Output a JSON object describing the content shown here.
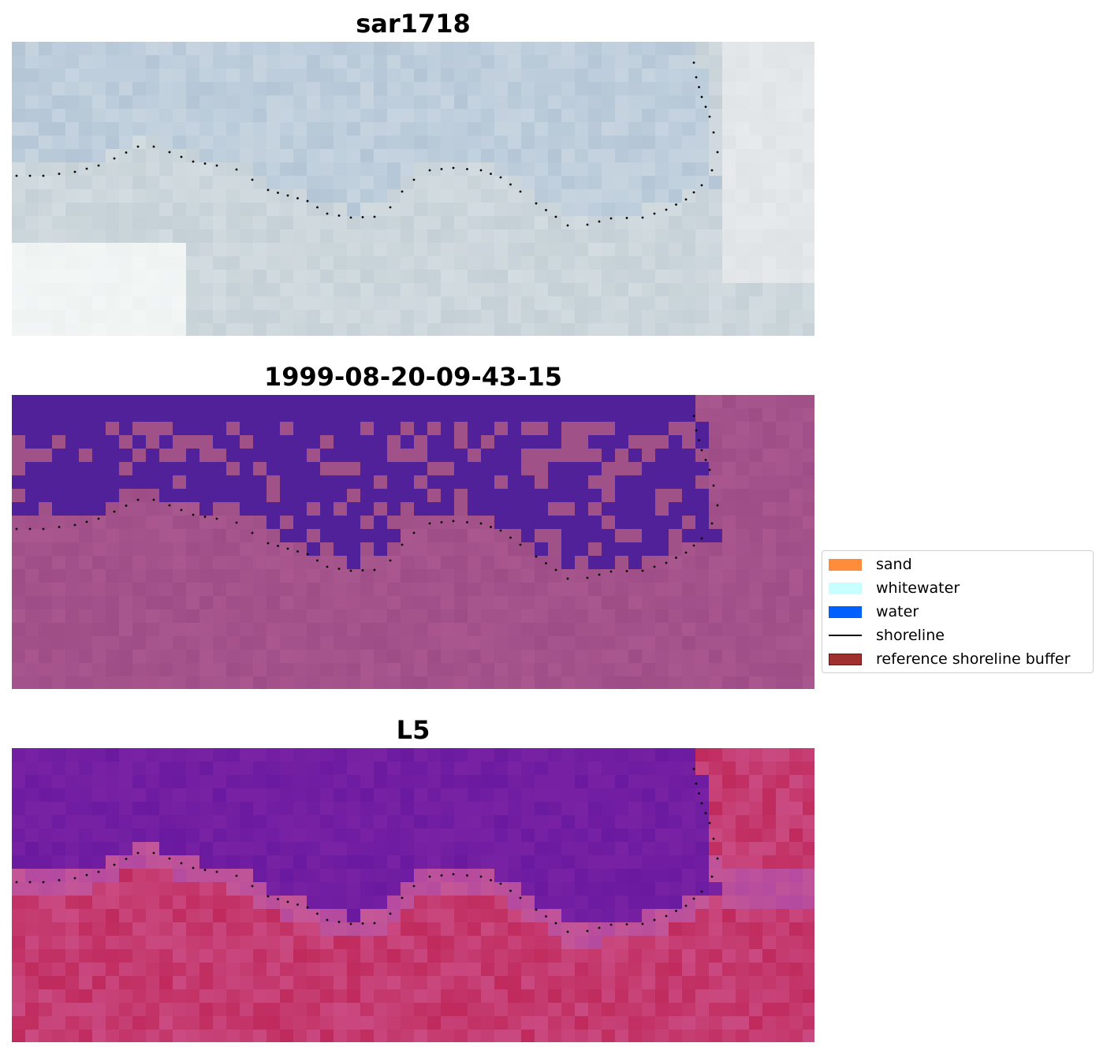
{
  "panels": [
    {
      "title": "sar1718",
      "kind": "rgb"
    },
    {
      "title": "1999-08-20-09-43-15",
      "kind": "classified"
    },
    {
      "title": "L5",
      "kind": "index"
    }
  ],
  "legend": {
    "items": [
      {
        "label": "sand",
        "type": "patch",
        "color": "#ff8c3a",
        "edge": "#ff8c3a"
      },
      {
        "label": "whitewater",
        "type": "patch",
        "color": "#c8ffff",
        "edge": "#c8ffff"
      },
      {
        "label": "water",
        "type": "patch",
        "color": "#0060ff",
        "edge": "#0060ff"
      },
      {
        "label": "shoreline",
        "type": "line",
        "color": "#000000"
      },
      {
        "label": "reference shoreline buffer",
        "type": "patch",
        "color": "#a03030",
        "edge": "#7a1010"
      }
    ]
  },
  "colors": {
    "rgb_sky": "#b4c6d6",
    "rgb_land": "#c4d0d6",
    "class_water": "#51219a",
    "class_land": "#9e4d86",
    "index_water": "#6a1aa0",
    "index_land": "#c02a5c",
    "shoreline": "#000000"
  }
}
